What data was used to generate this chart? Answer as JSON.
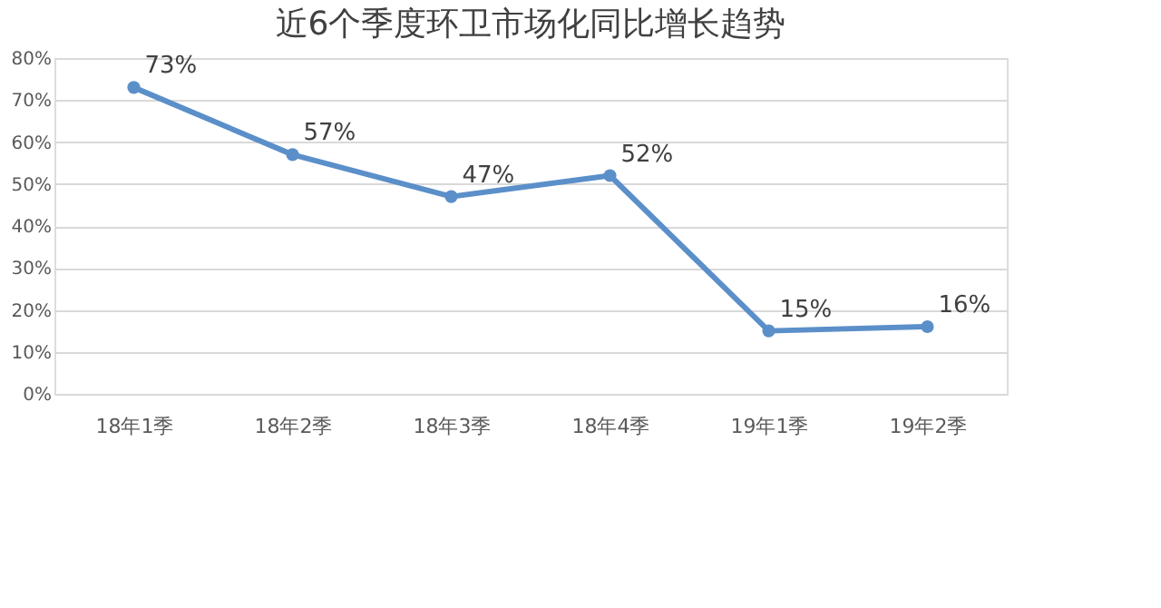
{
  "chart_data": {
    "type": "line",
    "title": "近6个季度环卫市场化同比增长趋势",
    "categories": [
      "18年1季",
      "18年2季",
      "18年3季",
      "18年4季",
      "19年1季",
      "19年2季"
    ],
    "series": [
      {
        "color": "#5b8fc9",
        "values": [
          73,
          57,
          47,
          52,
          15,
          16
        ],
        "value_labels": [
          "73%",
          "57%",
          "47%",
          "52%",
          "15%",
          "16%"
        ]
      }
    ],
    "ylim": [
      0,
      80
    ],
    "yticks": [
      {
        "value": 0,
        "label": "0%"
      },
      {
        "value": 10,
        "label": "10%"
      },
      {
        "value": 20,
        "label": "20%"
      },
      {
        "value": 30,
        "label": "30%"
      },
      {
        "value": 40,
        "label": "40%"
      },
      {
        "value": 50,
        "label": "50%"
      },
      {
        "value": 60,
        "label": "60%"
      },
      {
        "value": 70,
        "label": "70%"
      },
      {
        "value": 80,
        "label": "80%"
      }
    ],
    "grid": "y",
    "marker": "circle",
    "line_style": "solid"
  }
}
